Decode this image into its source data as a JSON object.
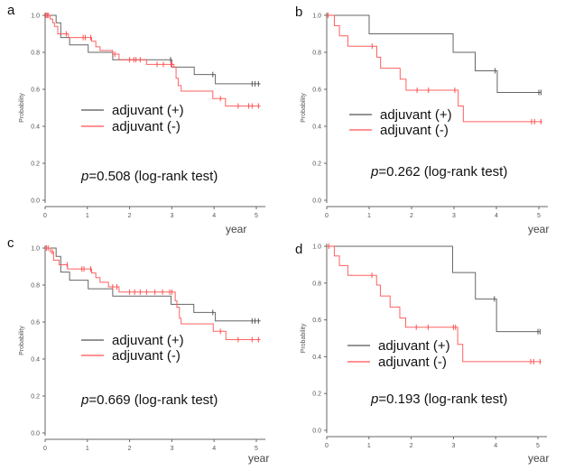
{
  "chart_data": [
    {
      "type": "line",
      "panel_label": "a",
      "ylabel": "Probability",
      "xlabel": "year",
      "xlim": [
        0,
        5
      ],
      "ylim": [
        0,
        1
      ],
      "xticks": [
        "0",
        "1",
        "2",
        "3",
        "4",
        "5"
      ],
      "yticks": [
        "0.0",
        "0.2",
        "0.4",
        "0.6",
        "0.8",
        "1.0"
      ],
      "annotation_p": "p",
      "annotation_rest": "=0.508 (log-rank test)",
      "legend_position": "center-left",
      "series": [
        {
          "name": "adjuvant (+)",
          "color": "#555555",
          "end": 5.1,
          "steps": [
            [
              0,
              1.0
            ],
            [
              0.26,
              0.96
            ],
            [
              0.37,
              0.88
            ],
            [
              0.58,
              0.84
            ],
            [
              1.02,
              0.8
            ],
            [
              1.6,
              0.76
            ],
            [
              3.0,
              0.72
            ],
            [
              3.53,
              0.68
            ],
            [
              4.03,
              0.63
            ]
          ],
          "censored": [
            2.97,
            3.97,
            4.9,
            4.97,
            5.05
          ]
        },
        {
          "name": "adjuvant (-)",
          "color": "#ff5050",
          "end": 5.1,
          "steps": [
            [
              0,
              1.0
            ],
            [
              0.12,
              0.98
            ],
            [
              0.18,
              0.96
            ],
            [
              0.22,
              0.94
            ],
            [
              0.3,
              0.9
            ],
            [
              0.55,
              0.88
            ],
            [
              1.1,
              0.86
            ],
            [
              1.2,
              0.83
            ],
            [
              1.3,
              0.81
            ],
            [
              1.6,
              0.79
            ],
            [
              1.75,
              0.76
            ],
            [
              2.4,
              0.735
            ],
            [
              3.05,
              0.72
            ],
            [
              3.1,
              0.66
            ],
            [
              3.15,
              0.62
            ],
            [
              3.22,
              0.59
            ],
            [
              3.97,
              0.55
            ],
            [
              4.27,
              0.51
            ]
          ],
          "censored": [
            0.02,
            0.05,
            0.08,
            0.5,
            0.9,
            0.95,
            1.08,
            1.65,
            2.0,
            2.1,
            2.15,
            2.25,
            2.65,
            2.8,
            2.98,
            3.0,
            4.15,
            4.57,
            4.82,
            4.9,
            5.05
          ]
        }
      ]
    },
    {
      "type": "line",
      "panel_label": "b",
      "ylabel": "Probability",
      "xlabel": "year",
      "xlim": [
        0,
        5
      ],
      "ylim": [
        0,
        1
      ],
      "xticks": [
        "0",
        "1",
        "2",
        "3",
        "4",
        "5"
      ],
      "yticks": [
        "0.0",
        "0.2",
        "0.4",
        "0.6",
        "0.8",
        "1.0"
      ],
      "annotation_p": "p",
      "annotation_rest": "=0.262 (log-rank test)",
      "legend_position": "center-left",
      "series": [
        {
          "name": "adjuvant (+)",
          "color": "#555555",
          "end": 5.05,
          "steps": [
            [
              0,
              1.0
            ],
            [
              1.0,
              0.9
            ],
            [
              2.98,
              0.8
            ],
            [
              3.5,
              0.7
            ],
            [
              4.02,
              0.583
            ]
          ],
          "censored": [
            3.97,
            5.0,
            5.05
          ]
        },
        {
          "name": "adjuvant (-)",
          "color": "#ff5050",
          "end": 5.08,
          "steps": [
            [
              0,
              1.0
            ],
            [
              0.18,
              0.944
            ],
            [
              0.3,
              0.889
            ],
            [
              0.5,
              0.833
            ],
            [
              1.18,
              0.774
            ],
            [
              1.27,
              0.714
            ],
            [
              1.73,
              0.655
            ],
            [
              1.87,
              0.595
            ],
            [
              3.1,
              0.51
            ],
            [
              3.22,
              0.425
            ]
          ],
          "censored": [
            0.03,
            1.07,
            2.13,
            2.4,
            3.02,
            4.83,
            4.9,
            5.05
          ]
        }
      ]
    },
    {
      "type": "line",
      "panel_label": "c",
      "ylabel": "Probability",
      "xlabel": "year",
      "xlim": [
        0,
        5
      ],
      "ylim": [
        0,
        1
      ],
      "xticks": [
        "0",
        "1",
        "2",
        "3",
        "4",
        "5"
      ],
      "yticks": [
        "0.0",
        "0.2",
        "0.4",
        "0.6",
        "0.8",
        "1.0"
      ],
      "annotation_p": "p",
      "annotation_rest": "=0.669 (log-rank test)",
      "legend_position": "center-left",
      "series": [
        {
          "name": "adjuvant (+)",
          "color": "#555555",
          "end": 5.1,
          "steps": [
            [
              0,
              1.0
            ],
            [
              0.26,
              0.955
            ],
            [
              0.37,
              0.87
            ],
            [
              0.58,
              0.826
            ],
            [
              1.02,
              0.78
            ],
            [
              1.6,
              0.74
            ],
            [
              2.98,
              0.696
            ],
            [
              3.52,
              0.652
            ],
            [
              4.03,
              0.606
            ]
          ],
          "censored": [
            3.97,
            4.9,
            4.97,
            5.05
          ]
        },
        {
          "name": "adjuvant (-)",
          "color": "#ff5050",
          "end": 5.1,
          "steps": [
            [
              0,
              1.0
            ],
            [
              0.12,
              0.98
            ],
            [
              0.2,
              0.935
            ],
            [
              0.33,
              0.91
            ],
            [
              0.53,
              0.887
            ],
            [
              1.1,
              0.865
            ],
            [
              1.2,
              0.84
            ],
            [
              1.3,
              0.815
            ],
            [
              1.5,
              0.79
            ],
            [
              1.75,
              0.762
            ],
            [
              3.08,
              0.715
            ],
            [
              3.12,
              0.68
            ],
            [
              3.18,
              0.62
            ],
            [
              3.22,
              0.59
            ],
            [
              3.98,
              0.55
            ],
            [
              4.28,
              0.505
            ]
          ],
          "censored": [
            0.03,
            0.07,
            0.17,
            0.52,
            0.87,
            0.92,
            1.08,
            1.6,
            1.7,
            2.0,
            2.12,
            2.25,
            2.4,
            2.6,
            2.78,
            2.95,
            3.0,
            4.15,
            4.57,
            4.9,
            5.05
          ]
        }
      ]
    },
    {
      "type": "line",
      "panel_label": "d",
      "ylabel": "Probability",
      "xlabel": "year",
      "xlim": [
        0,
        5
      ],
      "ylim": [
        0,
        1
      ],
      "xticks": [
        "0",
        "1",
        "2",
        "3",
        "4",
        "5"
      ],
      "yticks": [
        "0.0",
        "0.2",
        "0.4",
        "0.6",
        "0.8",
        "1.0"
      ],
      "annotation_p": "p",
      "annotation_rest": "=0.193 (log-rank test)",
      "legend_position": "center-left",
      "series": [
        {
          "name": "adjuvant (+)",
          "color": "#555555",
          "end": 5.05,
          "steps": [
            [
              0,
              1.0
            ],
            [
              2.98,
              0.857
            ],
            [
              3.52,
              0.714
            ],
            [
              4.02,
              0.536
            ]
          ],
          "censored": [
            3.97,
            5.0,
            5.05
          ]
        },
        {
          "name": "adjuvant (-)",
          "color": "#ff5050",
          "end": 5.08,
          "steps": [
            [
              0,
              1.0
            ],
            [
              0.18,
              0.947
            ],
            [
              0.3,
              0.895
            ],
            [
              0.5,
              0.842
            ],
            [
              1.18,
              0.789
            ],
            [
              1.27,
              0.73
            ],
            [
              1.5,
              0.67
            ],
            [
              1.73,
              0.61
            ],
            [
              1.87,
              0.56
            ],
            [
              3.1,
              0.467
            ],
            [
              3.22,
              0.373
            ]
          ],
          "censored": [
            0.05,
            1.07,
            2.12,
            2.4,
            3.0,
            3.05,
            4.83,
            4.9,
            5.05
          ]
        }
      ]
    }
  ]
}
